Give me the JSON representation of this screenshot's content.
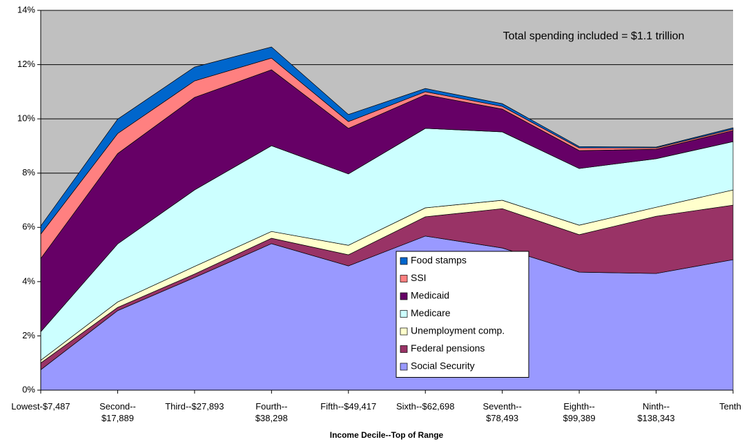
{
  "chart_data": {
    "type": "stacked_area",
    "annotation": "Total spending included = $1.1 trillion",
    "x_label": "Income Decile--Top of Range",
    "categories": [
      "Lowest-$7,487",
      "Second--\n$17,889",
      "Third--$27,893",
      "Fourth--\n$38,298",
      "Fifth--$49,417",
      "Sixth--$62,698",
      "Seventh--\n$78,493",
      "Eighth--\n$99,389",
      "Ninth--\n$138,343",
      "Tenth"
    ],
    "series": [
      {
        "name": "Social Security",
        "color": "#9999ff",
        "values": [
          0.75,
          2.93,
          4.15,
          5.4,
          4.58,
          5.68,
          5.24,
          4.35,
          4.3,
          4.81
        ]
      },
      {
        "name": "Federal pensions",
        "color": "#993366",
        "values": [
          0.25,
          0.12,
          0.13,
          0.2,
          0.41,
          0.71,
          1.45,
          1.38,
          2.11,
          2.01
        ]
      },
      {
        "name": "Unemployment comp.",
        "color": "#ffffcc",
        "values": [
          0.1,
          0.2,
          0.28,
          0.25,
          0.35,
          0.33,
          0.31,
          0.35,
          0.33,
          0.56
        ]
      },
      {
        "name": "Medicare",
        "color": "#ccffff",
        "values": [
          1.05,
          2.14,
          2.82,
          3.16,
          2.63,
          2.93,
          2.52,
          2.09,
          1.79,
          1.78
        ]
      },
      {
        "name": "Medicaid",
        "color": "#660066",
        "values": [
          2.7,
          3.33,
          3.41,
          2.8,
          1.68,
          1.24,
          0.84,
          0.66,
          0.35,
          0.41
        ]
      },
      {
        "name": "SSI",
        "color": "#ff8080",
        "values": [
          0.9,
          0.74,
          0.61,
          0.43,
          0.25,
          0.11,
          0.1,
          0.1,
          0.05,
          0.05
        ]
      },
      {
        "name": "Food stamps",
        "color": "#0066cc",
        "values": [
          0.3,
          0.53,
          0.51,
          0.41,
          0.26,
          0.12,
          0.1,
          0.05,
          0.03,
          0.05
        ]
      }
    ],
    "ylim": [
      0,
      14
    ],
    "yticks": [
      {
        "value": 0,
        "label": "0%"
      },
      {
        "value": 2,
        "label": "2%"
      },
      {
        "value": 4,
        "label": "4%"
      },
      {
        "value": 6,
        "label": "6%"
      },
      {
        "value": 8,
        "label": "8%"
      },
      {
        "value": 10,
        "label": "10%"
      },
      {
        "value": 12,
        "label": "12%"
      },
      {
        "value": 14,
        "label": "14%"
      }
    ],
    "grid": true,
    "background": "#c0c0c0"
  }
}
